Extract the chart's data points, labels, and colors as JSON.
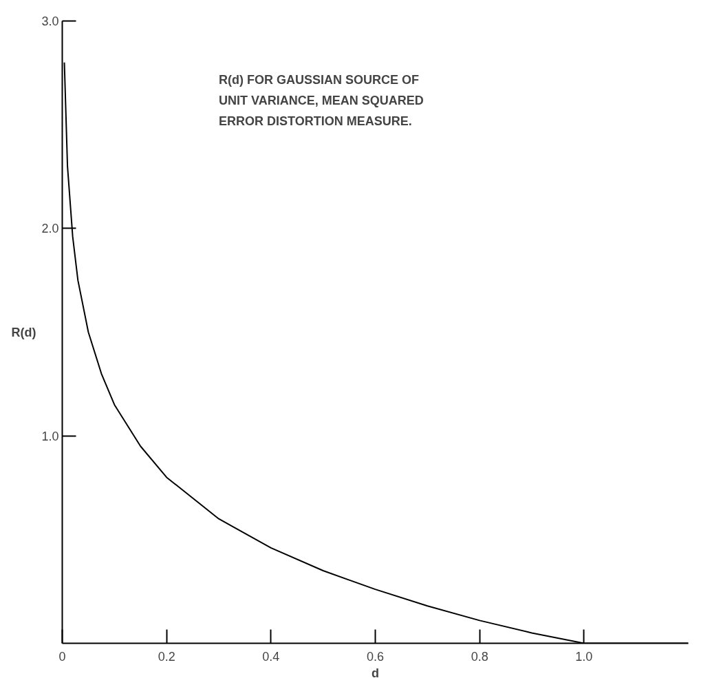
{
  "chart_data": {
    "type": "line",
    "xlabel": "d",
    "ylabel": "R(d)",
    "annotations": [
      "R(d) FOR GAUSSIAN SOURCE OF\nUNIT VARIANCE, MEAN SQUARED\nERROR DISTORTION MEASURE."
    ],
    "x": [
      0.004,
      0.01,
      0.02,
      0.03,
      0.05,
      0.075,
      0.1,
      0.15,
      0.2,
      0.3,
      0.4,
      0.5,
      0.6,
      0.7,
      0.8,
      0.9,
      1.0,
      1.2
    ],
    "series": [
      {
        "color": "#000000",
        "values": [
          2.8,
          2.3,
          1.96,
          1.75,
          1.5,
          1.3,
          1.15,
          0.95,
          0.8,
          0.6,
          0.46,
          0.35,
          0.26,
          0.18,
          0.11,
          0.05,
          0,
          0
        ]
      }
    ],
    "xlim": [
      0,
      1.2
    ],
    "ylim": [
      0,
      3
    ],
    "xticks": [
      0,
      0.2,
      0.4,
      0.6,
      0.8,
      {
        "value": 1.0,
        "label": "1.0"
      }
    ],
    "yticks": [
      {
        "value": 1,
        "label": "1.0"
      },
      {
        "value": 2,
        "label": "2.0"
      },
      {
        "value": 3,
        "label": "3.0"
      }
    ],
    "grid": false,
    "marker": "none",
    "line_style": "solid"
  }
}
